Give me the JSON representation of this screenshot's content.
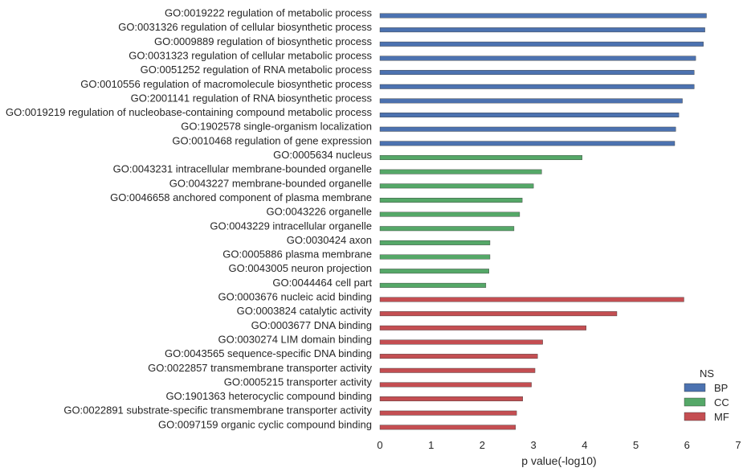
{
  "chart_data": {
    "type": "bar",
    "orientation": "horizontal",
    "xlabel": "p value(-log10)",
    "ylabel": "",
    "title": "",
    "xlim": [
      0,
      7
    ],
    "xticks": [
      "0",
      "1",
      "2",
      "3",
      "4",
      "5",
      "6",
      "7"
    ],
    "grid": false,
    "legend": {
      "title": "NS",
      "placement": "bottom-right",
      "entries": [
        {
          "name": "BP",
          "color": "#4c72b0"
        },
        {
          "name": "CC",
          "color": "#55a868"
        },
        {
          "name": "MF",
          "color": "#c44e52"
        }
      ]
    },
    "bars": [
      {
        "label": "GO:0019222 regulation of metabolic process",
        "value": 6.38,
        "ns": "BP"
      },
      {
        "label": "GO:0031326 regulation of cellular biosynthetic process",
        "value": 6.35,
        "ns": "BP"
      },
      {
        "label": "GO:0009889 regulation of biosynthetic process",
        "value": 6.32,
        "ns": "BP"
      },
      {
        "label": "GO:0031323 regulation of cellular metabolic process",
        "value": 6.17,
        "ns": "BP"
      },
      {
        "label": "GO:0051252 regulation of RNA metabolic process",
        "value": 6.14,
        "ns": "BP"
      },
      {
        "label": "GO:0010556 regulation of macromolecule biosynthetic process",
        "value": 6.14,
        "ns": "BP"
      },
      {
        "label": "GO:2001141 regulation of RNA biosynthetic process",
        "value": 5.91,
        "ns": "BP"
      },
      {
        "label": "GO:0019219 regulation of nucleobase-containing compound metabolic process",
        "value": 5.84,
        "ns": "BP"
      },
      {
        "label": "GO:1902578 single-organism localization",
        "value": 5.78,
        "ns": "BP"
      },
      {
        "label": "GO:0010468 regulation of gene expression",
        "value": 5.76,
        "ns": "BP"
      },
      {
        "label": "GO:0005634 nucleus",
        "value": 3.95,
        "ns": "CC"
      },
      {
        "label": "GO:0043231 intracellular membrane-bounded organelle",
        "value": 3.16,
        "ns": "CC"
      },
      {
        "label": "GO:0043227 membrane-bounded organelle",
        "value": 3.0,
        "ns": "CC"
      },
      {
        "label": "GO:0046658 anchored component of plasma membrane",
        "value": 2.78,
        "ns": "CC"
      },
      {
        "label": "GO:0043226 organelle",
        "value": 2.73,
        "ns": "CC"
      },
      {
        "label": "GO:0043229 intracellular organelle",
        "value": 2.62,
        "ns": "CC"
      },
      {
        "label": "GO:0030424 axon",
        "value": 2.15,
        "ns": "CC"
      },
      {
        "label": "GO:0005886 plasma membrane",
        "value": 2.15,
        "ns": "CC"
      },
      {
        "label": "GO:0043005 neuron projection",
        "value": 2.13,
        "ns": "CC"
      },
      {
        "label": "GO:0044464 cell part",
        "value": 2.07,
        "ns": "CC"
      },
      {
        "label": "GO:0003676 nucleic acid binding",
        "value": 5.94,
        "ns": "MF"
      },
      {
        "label": "GO:0003824 catalytic activity",
        "value": 4.63,
        "ns": "MF"
      },
      {
        "label": "GO:0003677 DNA binding",
        "value": 4.03,
        "ns": "MF"
      },
      {
        "label": "GO:0030274 LIM domain binding",
        "value": 3.18,
        "ns": "MF"
      },
      {
        "label": "GO:0043565 sequence-specific DNA binding",
        "value": 3.08,
        "ns": "MF"
      },
      {
        "label": "GO:0022857 transmembrane transporter activity",
        "value": 3.03,
        "ns": "MF"
      },
      {
        "label": "GO:0005215 transporter activity",
        "value": 2.96,
        "ns": "MF"
      },
      {
        "label": "GO:1901363 heterocyclic compound binding",
        "value": 2.79,
        "ns": "MF"
      },
      {
        "label": "GO:0022891 substrate-specific transmembrane transporter activity",
        "value": 2.67,
        "ns": "MF"
      },
      {
        "label": "GO:0097159 organic cyclic compound binding",
        "value": 2.65,
        "ns": "MF"
      }
    ]
  }
}
